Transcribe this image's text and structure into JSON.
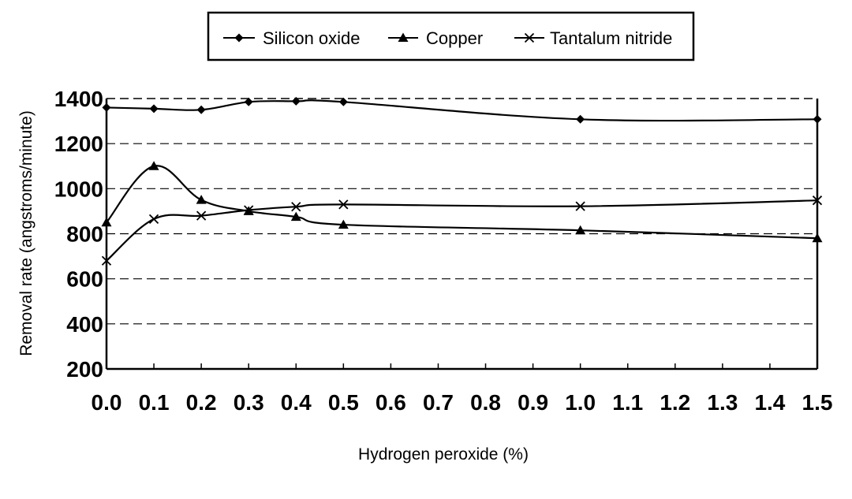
{
  "chart_data": {
    "type": "line",
    "x_categories": [
      "0.0",
      "0.1",
      "0.2",
      "0.3",
      "0.4",
      "0.5",
      "0.6",
      "0.7",
      "0.8",
      "0.9",
      "1.0",
      "1.1",
      "1.2",
      "1.3",
      "1.4",
      "1.5"
    ],
    "xlabel": "Hydrogen peroxide (%)",
    "ylabel": "Removal rate (angstroms/minute)",
    "ylim": [
      200,
      1400
    ],
    "yticks": [
      200,
      400,
      600,
      800,
      1000,
      1200,
      1400
    ],
    "grid": "horizontal dashed",
    "legend_position": "top",
    "series": [
      {
        "name": "Silicon oxide",
        "marker": "diamond",
        "x": [
          0.0,
          0.1,
          0.2,
          0.3,
          0.4,
          0.5,
          1.0,
          1.5
        ],
        "values": [
          1360,
          1355,
          1350,
          1385,
          1388,
          1385,
          1308,
          1308
        ]
      },
      {
        "name": "Copper",
        "marker": "triangle",
        "x": [
          0.0,
          0.1,
          0.2,
          0.3,
          0.4,
          0.5,
          1.0,
          1.5
        ],
        "values": [
          850,
          1100,
          950,
          900,
          875,
          840,
          815,
          780
        ]
      },
      {
        "name": "Tantalum nitride",
        "marker": "x",
        "x": [
          0.0,
          0.1,
          0.2,
          0.3,
          0.4,
          0.5,
          1.0,
          1.5
        ],
        "values": [
          680,
          865,
          880,
          905,
          920,
          930,
          922,
          948
        ]
      }
    ]
  }
}
